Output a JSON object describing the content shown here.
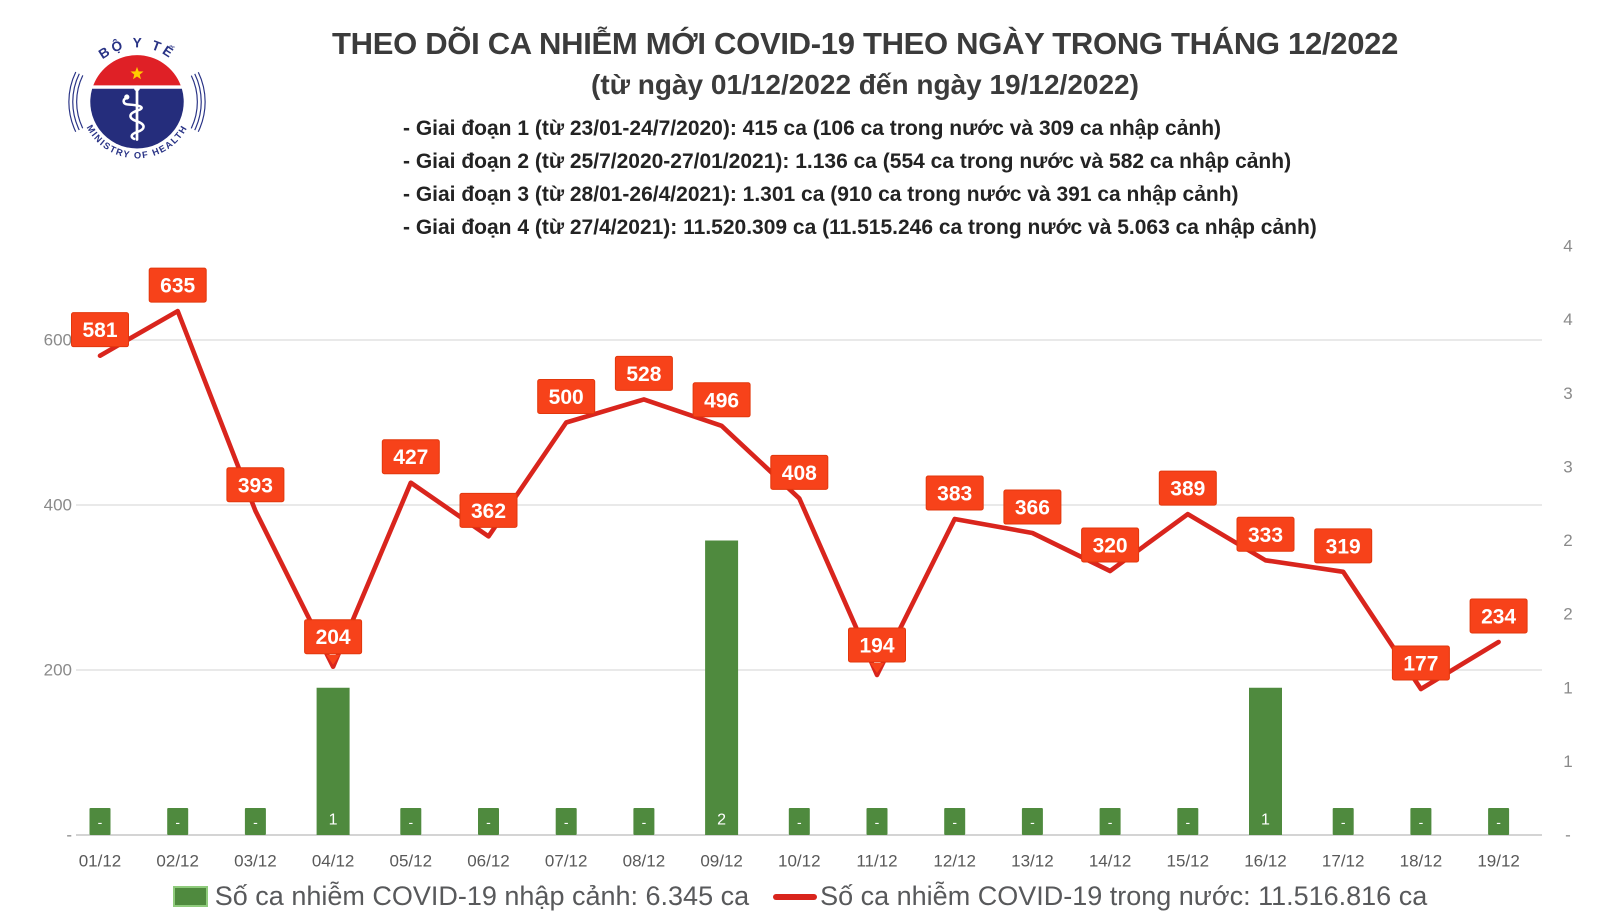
{
  "header": {
    "title": "THEO DÕI CA NHIỄM MỚI COVID-19 THEO NGÀY TRONG THÁNG 12/2022",
    "subtitle": "(từ ngày 01/12/2022 đến ngày 19/12/2022)",
    "phases": [
      "- Giai đoạn 1 (từ 23/01-24/7/2020): 415 ca (106 ca trong nước và 309 ca nhập cảnh)",
      "- Giai đoạn 2 (từ 25/7/2020-27/01/2021): 1.136 ca (554 ca trong nước và 582 ca nhập cảnh)",
      "- Giai đoạn 3 (từ 28/01-26/4/2021): 1.301 ca (910 ca trong nước và 391 ca nhập cảnh)",
      "- Giai đoạn 4 (từ 27/4/2021): 11.520.309 ca (11.515.246 ca trong nước và 5.063 ca nhập cảnh)"
    ]
  },
  "logo": {
    "top_text": "BỘ Y TẾ",
    "bottom_text": "MINISTRY OF HEALTH"
  },
  "chart_data": {
    "type": "line+bar",
    "categories": [
      "01/12",
      "02/12",
      "03/12",
      "04/12",
      "05/12",
      "06/12",
      "07/12",
      "08/12",
      "09/12",
      "10/12",
      "11/12",
      "12/12",
      "13/12",
      "14/12",
      "15/12",
      "16/12",
      "17/12",
      "18/12",
      "19/12"
    ],
    "series": [
      {
        "name": "Số ca nhiễm COVID-19 trong nước",
        "type": "line",
        "axis": "left",
        "values": [
          581,
          635,
          393,
          204,
          427,
          362,
          500,
          528,
          496,
          408,
          194,
          383,
          366,
          320,
          389,
          333,
          319,
          177,
          234
        ]
      },
      {
        "name": "Số ca nhiễm COVID-19 nhập cảnh",
        "type": "bar",
        "axis": "right",
        "values": [
          0,
          0,
          0,
          1,
          0,
          0,
          0,
          0,
          2,
          0,
          0,
          0,
          0,
          0,
          0,
          1,
          0,
          0,
          0
        ],
        "zero_label": "-"
      }
    ],
    "left_axis": {
      "ticks": [
        600,
        400,
        200,
        0
      ],
      "labels": [
        "600",
        "400",
        "200",
        "-"
      ]
    },
    "right_axis": {
      "ticks": [
        0,
        0.5,
        1,
        1.5,
        2,
        2.5,
        3,
        3.5,
        4
      ],
      "labels": [
        "-",
        "1",
        "1",
        "2",
        "2",
        "3",
        "3",
        "4",
        "4"
      ]
    },
    "callout_indices": [
      3,
      10
    ],
    "grid": true,
    "legend_position": "bottom",
    "title": "THEO DÕI CA NHIỄM MỚI COVID-19 THEO NGÀY TRONG THÁNG 12/2022"
  },
  "legend": {
    "bar_label": "Số ca nhiễm COVID-19 nhập cảnh: 6.345 ca",
    "line_label": "Số ca nhiễm COVID-19 trong nước: 11.516.816 ca"
  },
  "colors": {
    "line": "#d9251d",
    "point_label_bg": "#f7421a",
    "point_label_border": "#e2370c",
    "point_label_text": "#ffffff",
    "bar": "#4f8a3e",
    "bar_swatch_border": "#8fcb7c",
    "grid": "#dcdcdc",
    "baseline": "#c6c6c6",
    "axis_text": "#8a8a8a",
    "x_label_text": "#595959",
    "title_text": "#3b3b3b",
    "body_text": "#232323",
    "legend_text": "#58595b",
    "logo_red": "#df2026",
    "logo_blue": "#252d7c",
    "logo_star_yellow": "#ffcc00"
  }
}
